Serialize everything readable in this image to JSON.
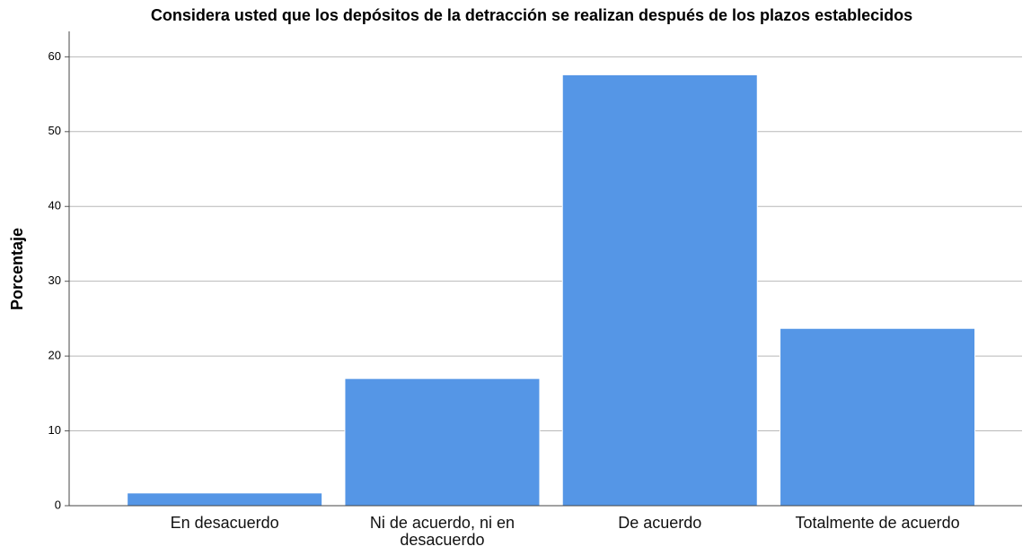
{
  "chart_data": {
    "type": "bar",
    "title": "Considera usted que los depósitos de la detracción se realizan después de los plazos establecidos",
    "y_label": "Porcentaje",
    "categories": [
      "En desacuerdo",
      "Ni de acuerdo, ni en desacuerdo",
      "De acuerdo",
      "Totalmente de acuerdo"
    ],
    "values": [
      1.7,
      17.0,
      57.6,
      23.7
    ],
    "color": "#5596e6",
    "ylim": [
      0,
      63.4
    ],
    "yticks": [
      0,
      10,
      20,
      30,
      40,
      50,
      60
    ],
    "grid": true
  }
}
